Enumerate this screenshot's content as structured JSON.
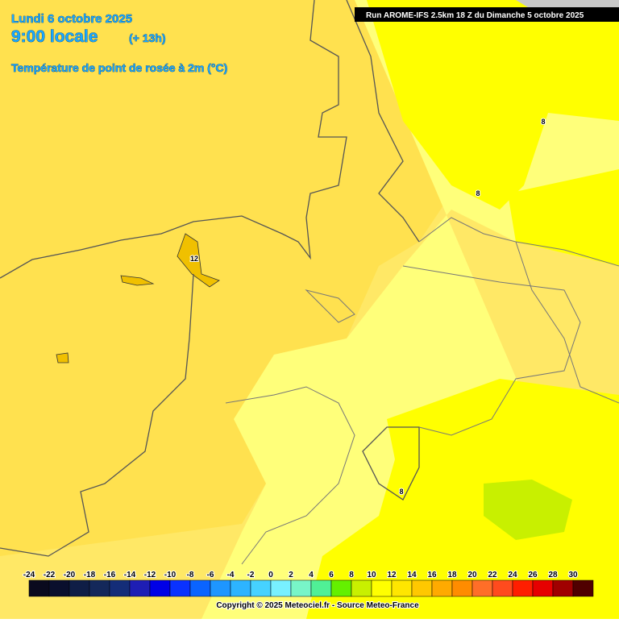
{
  "header": {
    "date": "Lundi 6 octobre 2025",
    "time": "9:00 locale",
    "lead": "(+ 13h)",
    "field": "Température de point de rosée à 2m (°C)",
    "run": "Run AROME-IFS 2.5km 18 Z du Dimanche 5 octobre 2025"
  },
  "contour_labels": [
    8,
    8,
    12,
    8
  ],
  "legend": {
    "items": [
      {
        "value": -24,
        "color": "#0a0a1e"
      },
      {
        "value": -22,
        "color": "#0a0f2d"
      },
      {
        "value": -20,
        "color": "#0f1e46"
      },
      {
        "value": -18,
        "color": "#14285a"
      },
      {
        "value": -16,
        "color": "#142d78"
      },
      {
        "value": -14,
        "color": "#1e1eb4"
      },
      {
        "value": -12,
        "color": "#0000e6"
      },
      {
        "value": -10,
        "color": "#0a32ff"
      },
      {
        "value": -8,
        "color": "#0a64ff"
      },
      {
        "value": -6,
        "color": "#1e96ff"
      },
      {
        "value": -4,
        "color": "#2db4ff"
      },
      {
        "value": -2,
        "color": "#46d2ff"
      },
      {
        "value": 0,
        "color": "#78f0ff"
      },
      {
        "value": 2,
        "color": "#78f5c8"
      },
      {
        "value": 4,
        "color": "#50f096"
      },
      {
        "value": 6,
        "color": "#64f000"
      },
      {
        "value": 8,
        "color": "#c8f000"
      },
      {
        "value": 10,
        "color": "#ffff00"
      },
      {
        "value": 12,
        "color": "#ffe600"
      },
      {
        "value": 14,
        "color": "#ffc800"
      },
      {
        "value": 16,
        "color": "#ffaa00"
      },
      {
        "value": 18,
        "color": "#ff8c00"
      },
      {
        "value": 20,
        "color": "#ff6e28"
      },
      {
        "value": 22,
        "color": "#ff4b1e"
      },
      {
        "value": 24,
        "color": "#ff1e00"
      },
      {
        "value": 26,
        "color": "#e60000"
      },
      {
        "value": 28,
        "color": "#a00000"
      },
      {
        "value": 30,
        "color": "#500000"
      }
    ]
  },
  "footer": {
    "copyright": "Copyright © 2025 Meteociel.fr - Source Meteo-France"
  }
}
